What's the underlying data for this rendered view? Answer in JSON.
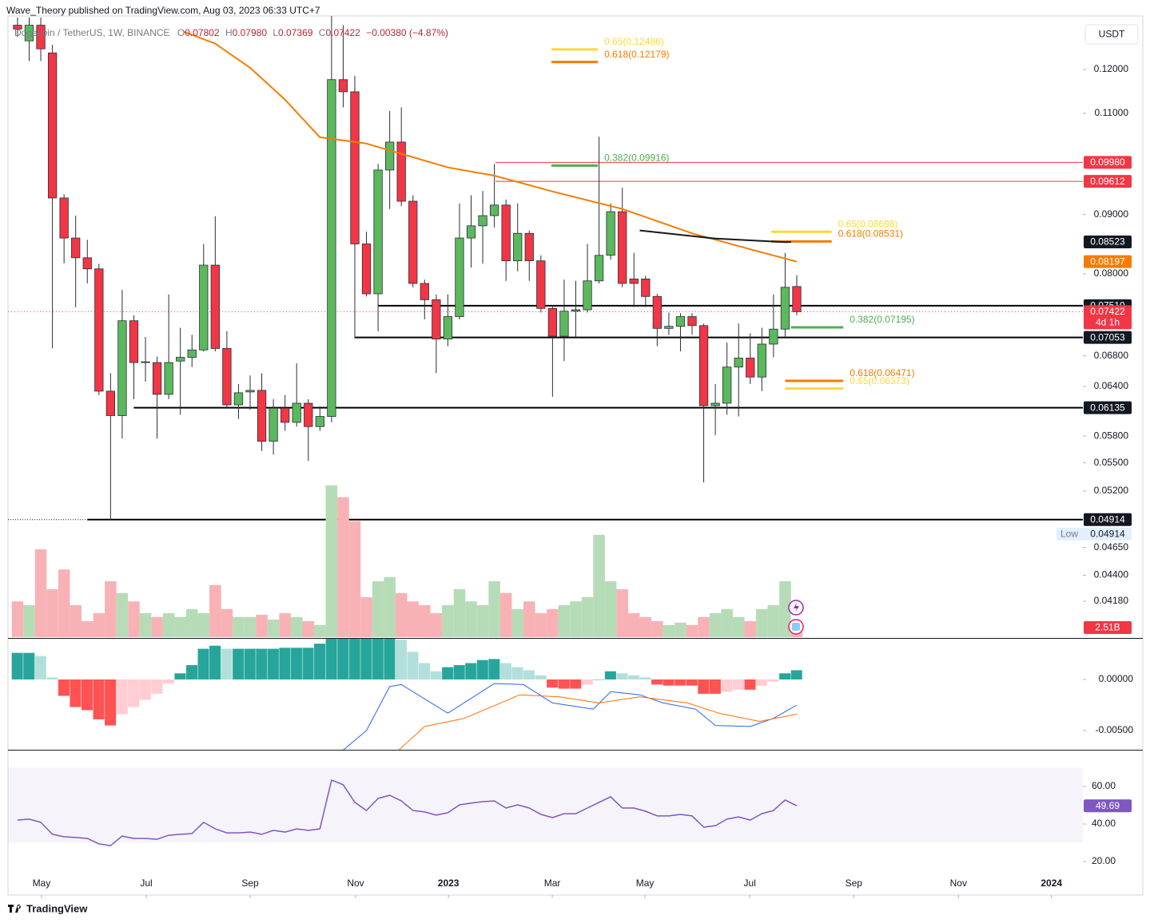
{
  "header": {
    "publisher": "Wave_Theory published on TradingView.com, Aug 03, 2023 06:33 UTC+7",
    "symbol": "Dogecoin / TetherUS, 1W, BINANCE",
    "ohlc": [
      {
        "key": "O",
        "value": "0.07802"
      },
      {
        "key": "H",
        "value": "0.07980"
      },
      {
        "key": "L",
        "value": "0.07369"
      },
      {
        "key": "C",
        "value": "0.07422"
      }
    ],
    "change": "−0.00380 (−4.87%)",
    "currency": "USDT"
  },
  "footer": {
    "brand": "TradingView"
  },
  "chart_data": [
    {
      "type": "candlestick",
      "log_scale": true,
      "up_color": "#5cb85c",
      "down_color": "#f23645",
      "open": [
        0.131,
        0.127,
        0.131,
        0.124,
        0.093,
        0.0859,
        0.0826,
        0.0808,
        0.0634,
        0.0604,
        0.0729,
        0.0671,
        0.0671,
        0.063,
        0.0673,
        0.0678,
        0.0688,
        0.0814,
        0.069,
        0.0617,
        0.0633,
        0.0635,
        0.0574,
        0.0613,
        0.0596,
        0.0619,
        0.0591,
        0.0603,
        0.1176,
        0.1148,
        0.0849,
        0.0769,
        0.0983,
        0.1039,
        0.0924,
        0.0785,
        0.076,
        0.0703,
        0.0735,
        0.0859,
        0.088,
        0.0898,
        0.0917,
        0.0821,
        0.0867,
        0.0821,
        0.0747,
        0.0707,
        0.0743,
        0.0745,
        0.0789,
        0.083,
        0.0905,
        0.0792,
        0.0792,
        0.0765,
        0.0718,
        0.0721,
        0.0735,
        0.0722,
        0.0616,
        0.0619,
        0.0665,
        0.0677,
        0.0652,
        0.0696,
        0.0717,
        0.07802
      ],
      "high": [
        0.133,
        0.133,
        0.133,
        0.126,
        0.0937,
        0.0898,
        0.0856,
        0.0816,
        0.0657,
        0.0775,
        0.0737,
        0.0706,
        0.0679,
        0.0768,
        0.0719,
        0.0709,
        0.0849,
        0.0897,
        0.0714,
        0.0643,
        0.0654,
        0.0657,
        0.0624,
        0.0629,
        0.067,
        0.0624,
        0.0615,
        0.134,
        0.131,
        0.1185,
        0.087,
        0.0995,
        0.1105,
        0.1113,
        0.0935,
        0.0791,
        0.0768,
        0.0768,
        0.092,
        0.0935,
        0.0943,
        0.0995,
        0.0927,
        0.092,
        0.0872,
        0.083,
        0.0752,
        0.0791,
        0.0789,
        0.0849,
        0.105,
        0.092,
        0.0949,
        0.0834,
        0.0797,
        0.0769,
        0.0741,
        0.074,
        0.074,
        0.0725,
        0.0643,
        0.0698,
        0.0725,
        0.0711,
        0.0719,
        0.0768,
        0.0834,
        0.0798
      ],
      "low": [
        0.128,
        0.122,
        0.122,
        0.069,
        0.0817,
        0.0749,
        0.0785,
        0.0629,
        0.04914,
        0.0577,
        0.0624,
        0.0646,
        0.0577,
        0.0624,
        0.0605,
        0.0665,
        0.0686,
        0.0686,
        0.0614,
        0.06,
        0.0611,
        0.0563,
        0.0559,
        0.0586,
        0.0591,
        0.0552,
        0.0586,
        0.0596,
        0.1113,
        0.0704,
        0.0765,
        0.0714,
        0.091,
        0.0915,
        0.0779,
        0.0731,
        0.0657,
        0.0693,
        0.0731,
        0.081,
        0.0816,
        0.0877,
        0.0789,
        0.0804,
        0.0789,
        0.0741,
        0.0627,
        0.0673,
        0.0704,
        0.0741,
        0.0785,
        0.0823,
        0.0779,
        0.0749,
        0.0749,
        0.0693,
        0.0709,
        0.0686,
        0.0709,
        0.0529,
        0.0581,
        0.0605,
        0.0603,
        0.0643,
        0.0634,
        0.0678,
        0.0704,
        0.07369
      ],
      "close": [
        0.13,
        0.131,
        0.125,
        0.093,
        0.0859,
        0.0826,
        0.0808,
        0.0634,
        0.0604,
        0.0729,
        0.0671,
        0.0672,
        0.063,
        0.0671,
        0.0678,
        0.0688,
        0.0814,
        0.069,
        0.0617,
        0.0632,
        0.0635,
        0.0574,
        0.0613,
        0.0596,
        0.0619,
        0.0591,
        0.0603,
        0.1176,
        0.1148,
        0.0849,
        0.0769,
        0.0983,
        0.1039,
        0.0924,
        0.0785,
        0.076,
        0.0703,
        0.0735,
        0.0859,
        0.088,
        0.0898,
        0.0917,
        0.0821,
        0.0867,
        0.0821,
        0.0747,
        0.0707,
        0.0743,
        0.0745,
        0.0789,
        0.083,
        0.0905,
        0.0785,
        0.0785,
        0.0765,
        0.0718,
        0.0721,
        0.0735,
        0.0722,
        0.0616,
        0.0619,
        0.0665,
        0.0677,
        0.0652,
        0.0696,
        0.0717,
        0.0779,
        0.07422
      ],
      "current_countdown": "4d 1h",
      "low_label": "Low",
      "xlim": [
        -0.82,
        91.6
      ],
      "xticks": [
        {
          "value": 2.06,
          "label": "May"
        },
        {
          "value": 11.07,
          "label": "Jul"
        },
        {
          "value": 20.0,
          "label": "Sep"
        },
        {
          "value": 29.07,
          "label": "Nov"
        },
        {
          "value": 37.05,
          "label": "2023"
        },
        {
          "value": 45.98,
          "label": "Mar"
        },
        {
          "value": 53.95,
          "label": "May"
        },
        {
          "value": 62.96,
          "label": "Jul"
        },
        {
          "value": 71.9,
          "label": "Sep"
        },
        {
          "value": 80.9,
          "label": "Nov"
        },
        {
          "value": 88.9,
          "label": "2024"
        }
      ],
      "ylim": [
        0.0388,
        0.133
      ],
      "yticks": [
        {
          "value": 0.12,
          "label": "0.12000"
        },
        {
          "value": 0.11,
          "label": "0.11000"
        },
        {
          "value": 0.09,
          "label": "0.09000"
        },
        {
          "value": 0.08,
          "label": "0.08000"
        },
        {
          "value": 0.068,
          "label": "0.06800"
        },
        {
          "value": 0.064,
          "label": "0.06400"
        },
        {
          "value": 0.058,
          "label": "0.05800"
        },
        {
          "value": 0.055,
          "label": "0.05500"
        },
        {
          "value": 0.052,
          "label": "0.05200"
        },
        {
          "value": 0.0465,
          "label": "0.04650"
        },
        {
          "value": 0.044,
          "label": "0.04400"
        },
        {
          "value": 0.0418,
          "label": "0.04180"
        }
      ],
      "moving_averages": [
        {
          "color": "#f57c00",
          "x": [
            14.3,
            17,
            20,
            23,
            26,
            30,
            37,
            41,
            46,
            52,
            58,
            63,
            67
          ],
          "values": [
            0.1293,
            0.1263,
            0.1204,
            0.113,
            0.1049,
            0.1036,
            0.0988,
            0.0972,
            0.0942,
            0.091,
            0.0867,
            0.084,
            0.08197
          ]
        },
        {
          "color": "#131722",
          "x": [
            53.5,
            60,
            66,
            66.5
          ],
          "values": [
            0.0872,
            0.0858,
            0.0852,
            0.08523
          ]
        }
      ],
      "levels": [
        {
          "value": 0.0998,
          "label": "0.09980",
          "color": "#f23645",
          "start": 41.1
        },
        {
          "value": 0.09612,
          "color": "#f23645",
          "start": 41.1
        },
        {
          "value": 0.0751,
          "label": "0.07510",
          "color": "#000000",
          "start": 31
        },
        {
          "value": 0.07053,
          "color": "#000000",
          "start": 29
        },
        {
          "value": 0.06135,
          "color": "#000000",
          "start": 10
        },
        {
          "value": 0.04914,
          "color": "#000000",
          "start": 6
        }
      ],
      "fibs": [
        {
          "value": 0.12486,
          "label": "0.65(0.12486)",
          "color": "#fdd835",
          "start": 45.9,
          "end": 49.9
        },
        {
          "value": 0.12179,
          "label": "0.618(0.12179)",
          "color": "#f57c00",
          "start": 45.9,
          "end": 49.9
        },
        {
          "value": 0.09916,
          "label": "0.382(0.09916)",
          "color": "#4caf50",
          "start": 45.9,
          "end": 49.9
        },
        {
          "value": 0.08698,
          "label": "0.65(0.08698)",
          "color": "#fdd835",
          "start": 64.8,
          "end": 70.0
        },
        {
          "value": 0.08531,
          "label": "0.618(0.08531)",
          "color": "#f57c00",
          "start": 64.8,
          "end": 70.0
        },
        {
          "value": 0.07195,
          "label": "0.382(0.07195)",
          "color": "#4caf50",
          "start": 66.5,
          "end": 71.0
        },
        {
          "value": 0.06471,
          "label": "0.618(0.06471)",
          "color": "#f57c00",
          "start": 66.0,
          "end": 71.0
        },
        {
          "value": 0.06373,
          "label": "0.65(0.06373)",
          "color": "#fdd835",
          "start": 66.0,
          "end": 71.0
        }
      ]
    },
    {
      "type": "bar",
      "up_color": "#b5dcb6",
      "down_color": "#f8b2b5",
      "values": [
        9.4,
        8.4,
        23.1,
        12.6,
        17.8,
        8.4,
        4.2,
        6.3,
        14.7,
        11.6,
        9.4,
        6.3,
        5.3,
        6.3,
        5.3,
        7.4,
        6.3,
        13.7,
        7.4,
        5.3,
        5.3,
        5.9,
        4.6,
        6.3,
        5.3,
        4.2,
        3.2,
        39.9,
        36.8,
        30.5,
        10.5,
        14.7,
        15.8,
        11.6,
        9.4,
        8.4,
        6.3,
        8.4,
        12.6,
        9.4,
        8.4,
        14.7,
        11.6,
        7.4,
        9.4,
        6.3,
        7.4,
        8.4,
        9.4,
        10.5,
        26.9,
        14.7,
        12.6,
        6.3,
        5.3,
        4.2,
        3.2,
        3.8,
        3.2,
        5.3,
        6.3,
        7.4,
        5.3,
        4.2,
        7.4,
        8.4,
        14.7,
        2.51
      ],
      "current_label": "2.51B",
      "ylim": [
        0,
        40.5
      ]
    },
    {
      "type": "macd",
      "histogram": [
        0.0026,
        0.0026,
        0.0023,
        0.0002,
        -0.0016,
        -0.0027,
        -0.003,
        -0.0039,
        -0.0045,
        -0.0034,
        -0.0027,
        -0.002,
        -0.0014,
        -0.0004,
        0.0006,
        0.0014,
        0.003,
        0.0033,
        0.003,
        0.003,
        0.003,
        0.003,
        0.003,
        0.0031,
        0.0031,
        0.0031,
        0.0035,
        0.0041,
        0.0041,
        0.0041,
        0.0041,
        0.0041,
        0.0041,
        0.0039,
        0.0027,
        0.0016,
        0.0008,
        0.0012,
        0.0014,
        0.0016,
        0.0019,
        0.002,
        0.0016,
        0.0012,
        0.0009,
        0.0004,
        -0.0008,
        -0.0009,
        -0.0009,
        -0.0005,
        0,
        0.0008,
        0.0006,
        0.0004,
        0.0002,
        -0.0005,
        -0.0006,
        -0.0006,
        -0.0006,
        -0.0014,
        -0.0014,
        -0.0012,
        -0.001,
        -0.001,
        -0.0006,
        -0.0002,
        0.0006,
        0.0009
      ],
      "macd": {
        "color": "#2962ff",
        "x": [
          28,
          30,
          32,
          33,
          37,
          41,
          43.5,
          46,
          49.5,
          51,
          53.5,
          55.5,
          58.3,
          60,
          63,
          65,
          67
        ],
        "values": [
          -0.0069,
          -0.005,
          -0.0007,
          -0.0005,
          -0.0033,
          -0.0004,
          -0.0005,
          -0.0023,
          -0.0029,
          -0.0012,
          -0.0015,
          -0.0023,
          -0.0029,
          -0.0045,
          -0.0046,
          -0.0038,
          -0.0025
        ]
      },
      "signal": {
        "color": "#ff6d00",
        "x": [
          32.7,
          35,
          38.4,
          43.2,
          46.6,
          50,
          53.5,
          57.6,
          60.3,
          63.8,
          67
        ],
        "values": [
          -0.007,
          -0.0046,
          -0.0038,
          -0.0015,
          -0.0017,
          -0.0023,
          -0.0017,
          -0.0023,
          -0.0033,
          -0.0041,
          -0.0034
        ]
      },
      "ylim": [
        -0.00695,
        0.00398
      ],
      "yticks": [
        {
          "value": 0,
          "label": "0.00000"
        },
        {
          "value": -0.005,
          "label": "-0.00500"
        }
      ]
    },
    {
      "type": "line",
      "color": "#7e57c2",
      "values": [
        42.1,
        42.6,
        40.9,
        34.5,
        33.2,
        32.8,
        32.3,
        29.4,
        28.5,
        33.6,
        32.3,
        32.3,
        31.9,
        34.0,
        34.5,
        34.9,
        40.9,
        37.4,
        35.3,
        35.3,
        35.7,
        34.5,
        36.6,
        35.7,
        37.4,
        36.6,
        37.4,
        63.4,
        60.9,
        51.5,
        47.2,
        53.6,
        55.3,
        52.3,
        47.2,
        46.4,
        44.7,
        46.0,
        50.2,
        51.1,
        51.9,
        52.3,
        48.5,
        50.2,
        48.5,
        45.1,
        43.4,
        45.5,
        45.5,
        48.5,
        51.5,
        54.5,
        48.5,
        48.5,
        46.8,
        44.3,
        44.3,
        45.1,
        44.3,
        38.3,
        39.1,
        42.6,
        43.8,
        42.1,
        45.5,
        47.2,
        52.8,
        49.69
      ],
      "band": [
        30,
        70
      ],
      "ylim": [
        11.1,
        79.1
      ],
      "yticks": [
        {
          "value": 60,
          "label": "60.00"
        },
        {
          "value": 40,
          "label": "40.00"
        },
        {
          "value": 20,
          "label": "20.00"
        }
      ]
    }
  ]
}
